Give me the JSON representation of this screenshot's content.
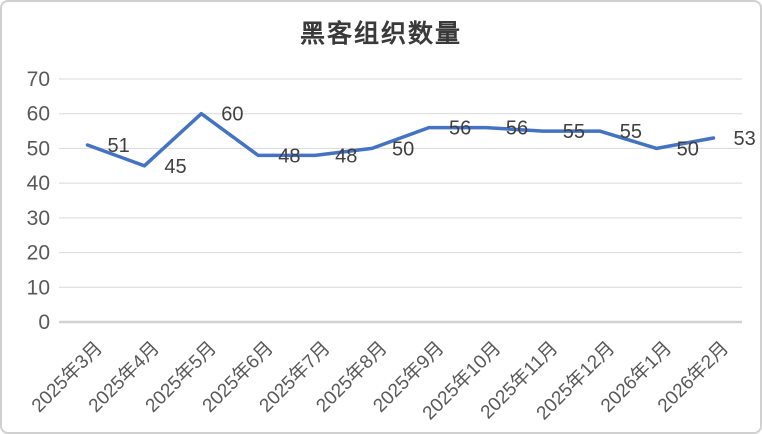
{
  "chart_data": {
    "type": "line",
    "title": "黑客组织数量",
    "categories": [
      "2025年3月",
      "2025年4月",
      "2025年5月",
      "2025年6月",
      "2025年7月",
      "2025年8月",
      "2025年9月",
      "2025年10月",
      "2025年11月",
      "2025年12月",
      "2026年1月",
      "2026年2月"
    ],
    "values": [
      51,
      45,
      60,
      48,
      48,
      50,
      56,
      56,
      55,
      55,
      50,
      53
    ],
    "ylim": [
      0,
      70
    ],
    "ytick_step": 10,
    "ytick_labels": [
      "0",
      "10",
      "20",
      "30",
      "40",
      "50",
      "60",
      "70"
    ],
    "grid": true,
    "legend": "none",
    "data_labels_position": "right",
    "x_label_rotation_deg": -45,
    "colors": {
      "series": "#4472C4",
      "grid": "#D9D9D9",
      "axis": "#D2D2D2",
      "axis_text": "#595959",
      "data_label_text": "#404040",
      "title_text": "#3A3A3A",
      "card_border": "#D0D0D0",
      "background": "#FFFFFF"
    }
  }
}
